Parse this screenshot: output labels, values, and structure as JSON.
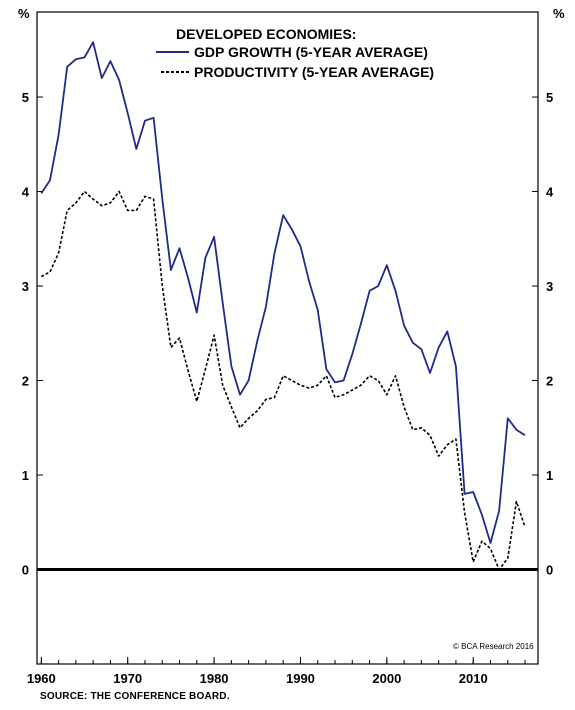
{
  "chart_data": {
    "type": "line",
    "legend_title": "DEVELOPED ECONOMIES:",
    "y_unit_left": "%",
    "y_unit_right": "%",
    "ylim": [
      -1,
      5.9
    ],
    "xlim": [
      1959.5,
      2017.5
    ],
    "x_ticks": [
      1960,
      1970,
      1980,
      1990,
      2000,
      2010
    ],
    "y_ticks": [
      0,
      1,
      2,
      3,
      4,
      5
    ],
    "grid": false,
    "legend_position": "top-center",
    "copyright": "© BCA Research 2016",
    "series": [
      {
        "name": "GDP GROWTH (5-YEAR AVERAGE)",
        "color": "#1f2a8c",
        "style": "solid",
        "x": [
          1960,
          1961,
          1962,
          1963,
          1964,
          1965,
          1966,
          1967,
          1968,
          1969,
          1970,
          1971,
          1972,
          1973,
          1974,
          1975,
          1976,
          1977,
          1978,
          1979,
          1980,
          1981,
          1982,
          1983,
          1984,
          1985,
          1986,
          1987,
          1988,
          1989,
          1990,
          1991,
          1992,
          1993,
          1994,
          1995,
          1996,
          1997,
          1998,
          1999,
          2000,
          2001,
          2002,
          2003,
          2004,
          2005,
          2006,
          2007,
          2008,
          2009,
          2010,
          2011,
          2012,
          2013,
          2014,
          2015,
          2016
        ],
        "y": [
          3.98,
          4.12,
          4.6,
          5.32,
          5.4,
          5.42,
          5.58,
          5.2,
          5.38,
          5.18,
          4.83,
          4.45,
          4.75,
          4.78,
          3.92,
          3.17,
          3.4,
          3.08,
          2.72,
          3.3,
          3.52,
          2.82,
          2.15,
          1.85,
          2.0,
          2.42,
          2.78,
          3.35,
          3.75,
          3.6,
          3.42,
          3.05,
          2.75,
          2.12,
          1.98,
          2.0,
          2.28,
          2.6,
          2.95,
          3.0,
          3.22,
          2.95,
          2.58,
          2.4,
          2.33,
          2.08,
          2.35,
          2.52,
          2.15,
          0.8,
          0.82,
          0.58,
          0.28,
          0.62,
          1.6,
          1.48,
          1.42
        ]
      },
      {
        "name": "PRODUCTIVITY (5-YEAR AVERAGE)",
        "color": "#000000",
        "style": "dashed",
        "x": [
          1960,
          1961,
          1962,
          1963,
          1964,
          1965,
          1966,
          1967,
          1968,
          1969,
          1970,
          1971,
          1972,
          1973,
          1974,
          1975,
          1976,
          1977,
          1978,
          1979,
          1980,
          1981,
          1982,
          1983,
          1984,
          1985,
          1986,
          1987,
          1988,
          1989,
          1990,
          1991,
          1992,
          1993,
          1994,
          1995,
          1996,
          1997,
          1998,
          1999,
          2000,
          2001,
          2002,
          2003,
          2004,
          2005,
          2006,
          2007,
          2008,
          2009,
          2010,
          2011,
          2012,
          2013,
          2014,
          2015,
          2016
        ],
        "y": [
          3.1,
          3.15,
          3.35,
          3.8,
          3.88,
          4.0,
          3.92,
          3.85,
          3.88,
          4.0,
          3.8,
          3.8,
          3.95,
          3.92,
          3.0,
          2.35,
          2.45,
          2.1,
          1.78,
          2.12,
          2.48,
          1.95,
          1.72,
          1.5,
          1.6,
          1.68,
          1.8,
          1.82,
          2.05,
          2.0,
          1.95,
          1.92,
          1.95,
          2.05,
          1.82,
          1.85,
          1.9,
          1.95,
          2.05,
          2.0,
          1.85,
          2.05,
          1.72,
          1.48,
          1.5,
          1.42,
          1.2,
          1.32,
          1.38,
          0.6,
          0.08,
          0.3,
          0.22,
          0.0,
          0.12,
          0.72,
          0.45
        ]
      }
    ]
  },
  "footer": {
    "source": "SOURCE: THE CONFERENCE BOARD."
  }
}
